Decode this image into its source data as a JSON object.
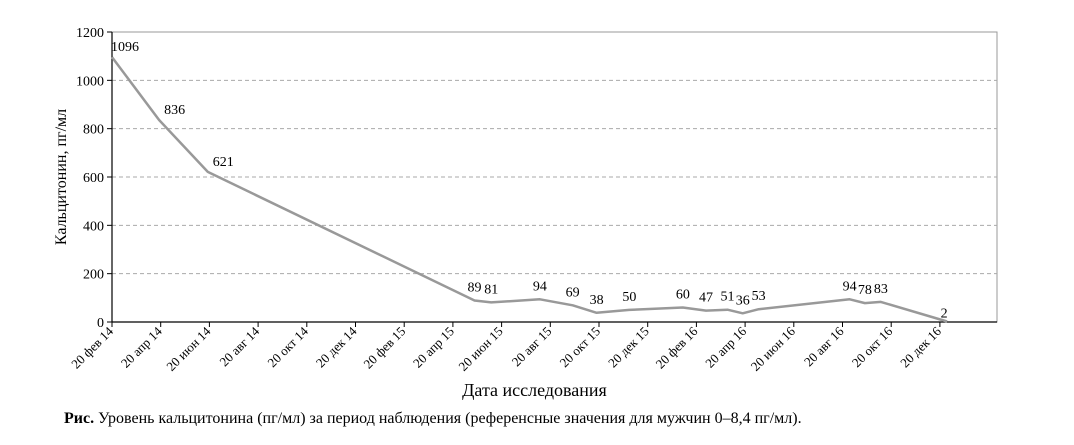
{
  "chart_data": {
    "type": "line",
    "xlabel": "Дата исследования",
    "ylabel": "Кальцитонин, пг/мл",
    "ylim": [
      0,
      1200
    ],
    "yticks": [
      0,
      200,
      400,
      600,
      800,
      1000,
      1200
    ],
    "xlim": [
      "2014-02-20",
      "2016-12-20"
    ],
    "x_tick_labels": [
      "20 фев 14",
      "20 апр 14",
      "20 июн 14",
      "20 авг 14",
      "20 окт 14",
      "20 дек 14",
      "20 фев 15",
      "20 апр 15",
      "20 июн 15",
      "20 авг 15",
      "20 окт 15",
      "20 дек 15",
      "20 фев 16",
      "20 апр 16",
      "20 июн 16",
      "20 авг 16",
      "20 окт 16",
      "20 дек 16"
    ],
    "grid": "horizontal dashed",
    "series": [
      {
        "values": [
          {
            "x": "2014-02-20",
            "y": 1096
          },
          {
            "x": "2014-04-20",
            "y": 836
          },
          {
            "x": "2014-06-20",
            "y": 621
          },
          {
            "x": "2015-05-20",
            "y": 89
          },
          {
            "x": "2015-06-10",
            "y": 81
          },
          {
            "x": "2015-08-10",
            "y": 94
          },
          {
            "x": "2015-09-20",
            "y": 69
          },
          {
            "x": "2015-10-20",
            "y": 38
          },
          {
            "x": "2015-11-30",
            "y": 50
          },
          {
            "x": "2016-02-05",
            "y": 60
          },
          {
            "x": "2016-03-05",
            "y": 47
          },
          {
            "x": "2016-04-01",
            "y": 51
          },
          {
            "x": "2016-04-20",
            "y": 36
          },
          {
            "x": "2016-05-10",
            "y": 53
          },
          {
            "x": "2016-09-01",
            "y": 94
          },
          {
            "x": "2016-09-20",
            "y": 78
          },
          {
            "x": "2016-10-10",
            "y": 83
          },
          {
            "x": "2017-01-01",
            "y": 2
          }
        ]
      }
    ]
  },
  "caption": {
    "prefix": "Рис.",
    "text": "Уровень кальцитонина (пг/мл) за период наблюдения (референсные значения для мужчин 0–8,4 пг/мл)."
  },
  "colors": {
    "line": "#999999",
    "grid": "#aaaaaa",
    "axis": "#000000"
  }
}
